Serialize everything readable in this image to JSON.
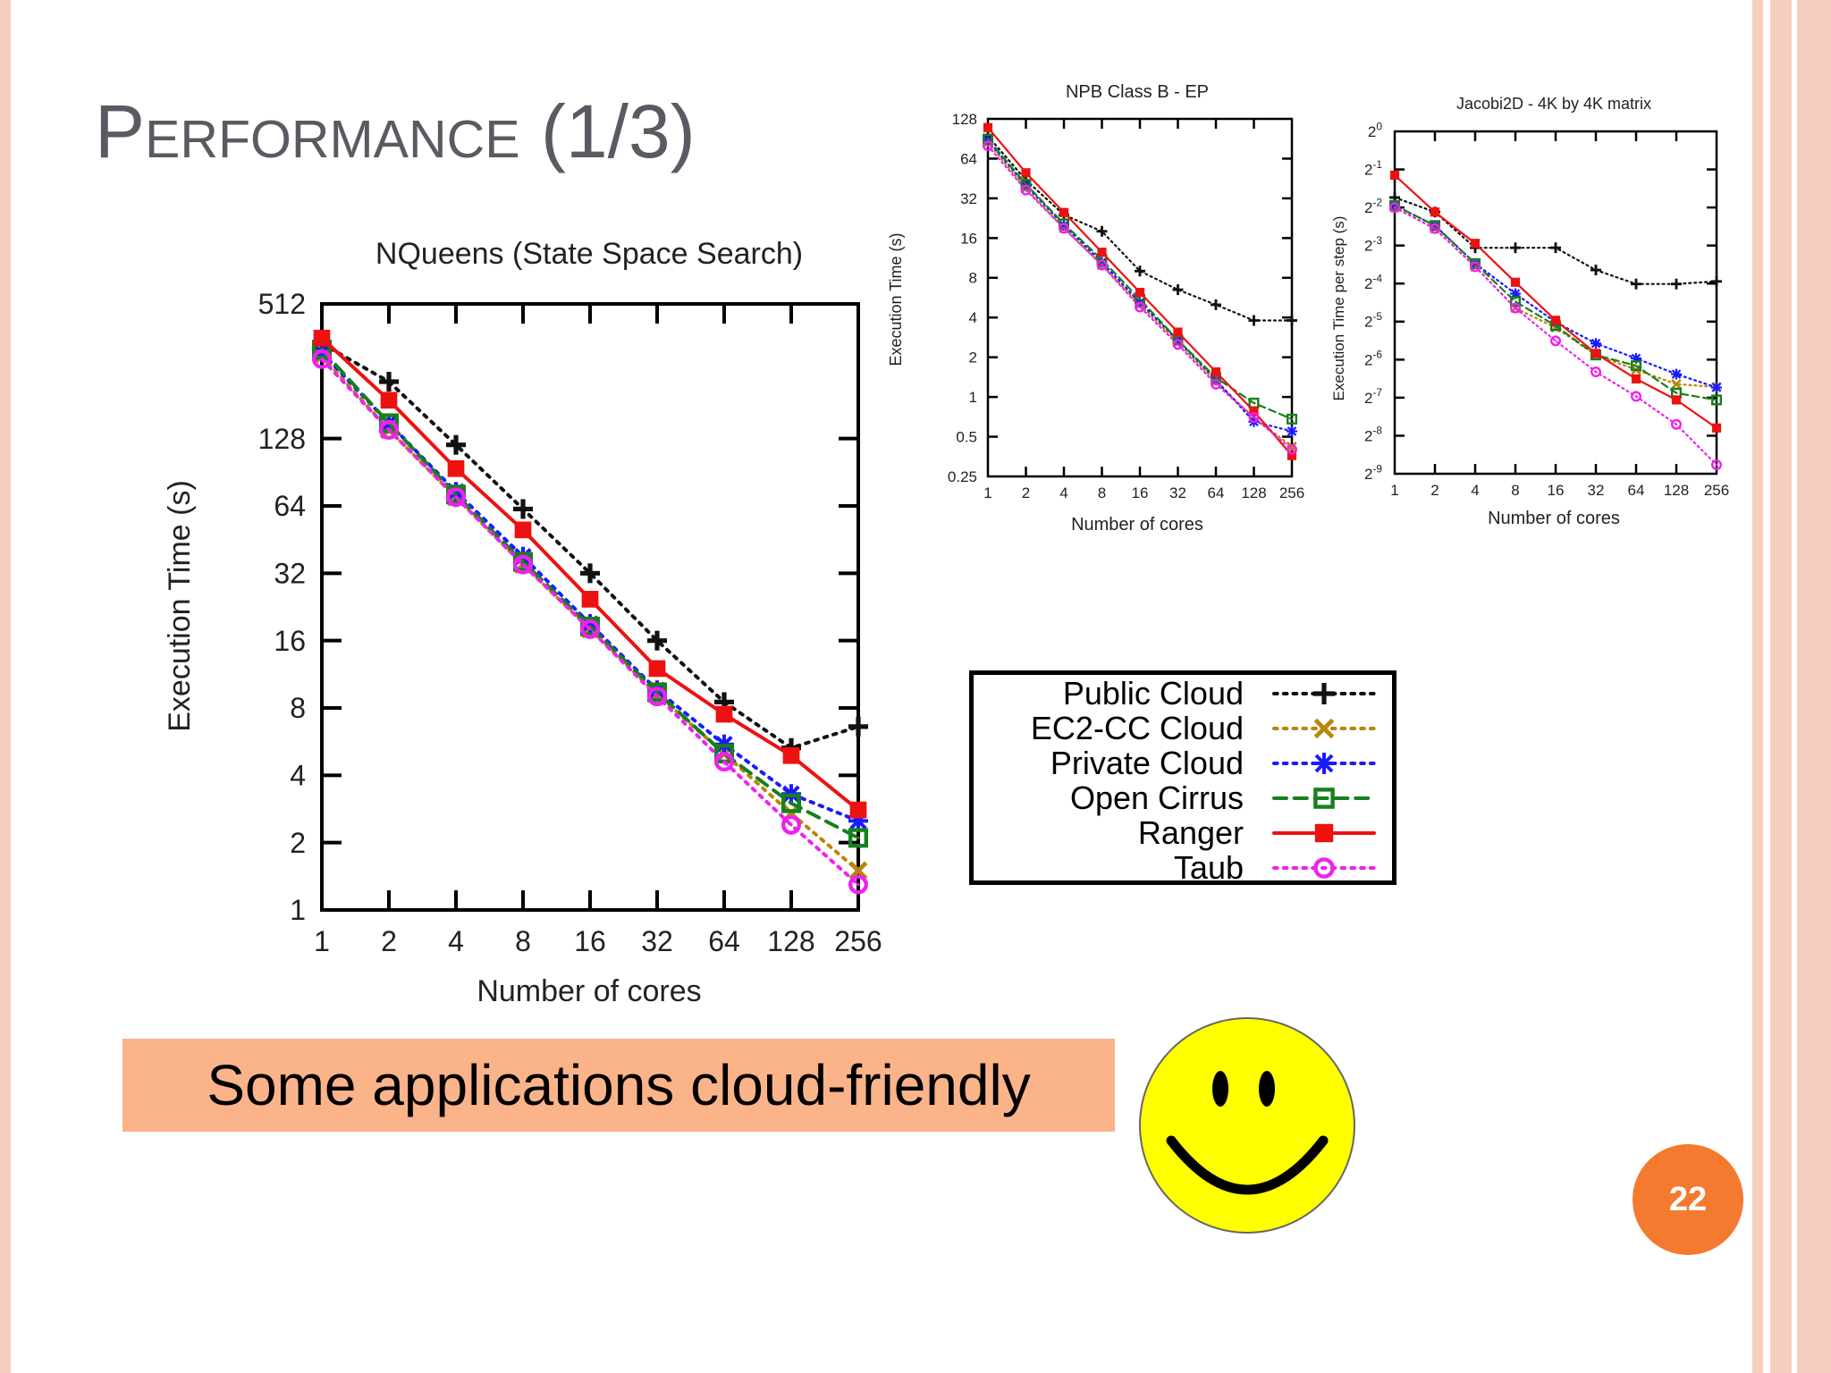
{
  "slide": {
    "title_main": "Performance",
    "title_suffix": " (1/3)",
    "banner_text": "Some applications cloud-friendly",
    "page_number": "22"
  },
  "theme": {
    "edge_color": "#f7cdbd",
    "title_color": "#5a5a62",
    "banner_color": "#fbb38a",
    "badge_color": "#f47a2f",
    "smiley_color": "#ffff00"
  },
  "legend": {
    "entries": [
      {
        "label": "Public Cloud",
        "series": "Public Cloud"
      },
      {
        "label": "EC2-CC Cloud",
        "series": "EC2-CC Cloud"
      },
      {
        "label": "Private Cloud",
        "series": "Private Cloud"
      },
      {
        "label": "Open Cirrus",
        "series": "Open Cirrus"
      },
      {
        "label": "Ranger",
        "series": "Ranger"
      },
      {
        "label": "Taub",
        "series": "Taub"
      }
    ]
  },
  "series_styles": [
    {
      "name": "Public Cloud",
      "color": "#111111",
      "dash": "dotted",
      "marker": "plus"
    },
    {
      "name": "EC2-CC Cloud",
      "color": "#b8860b",
      "dash": "dotted",
      "marker": "x"
    },
    {
      "name": "Private Cloud",
      "color": "#1a1aff",
      "dash": "dotted",
      "marker": "star"
    },
    {
      "name": "Open Cirrus",
      "color": "#16801c",
      "dash": "dashed",
      "marker": "open-square"
    },
    {
      "name": "Ranger",
      "color": "#ee1111",
      "dash": "solid",
      "marker": "filled-square"
    },
    {
      "name": "Taub",
      "color": "#ee22ee",
      "dash": "dotted",
      "marker": "open-circle"
    }
  ],
  "chart_data": [
    {
      "id": "nqueens",
      "type": "line",
      "title": "NQueens (State Space Search)",
      "xlabel": "Number of cores",
      "ylabel": "Execution Time (s)",
      "x_scale": "log2",
      "y_scale": "log2",
      "categories": [
        "1",
        "2",
        "4",
        "8",
        "16",
        "32",
        "64",
        "128",
        "256"
      ],
      "x": [
        1,
        2,
        4,
        8,
        16,
        32,
        64,
        128,
        256
      ],
      "yticks": [
        "1",
        "2",
        "4",
        "8",
        "16",
        "32",
        "64",
        "128",
        "512"
      ],
      "ylim": [
        1,
        512
      ],
      "series": [
        {
          "name": "Public Cloud",
          "values": [
            340,
            230,
            120,
            62,
            32,
            16,
            8.5,
            5.3,
            6.6
          ]
        },
        {
          "name": "EC2-CC Cloud",
          "values": [
            300,
            140,
            70,
            35,
            18,
            9.2,
            5.0,
            2.7,
            1.5
          ]
        },
        {
          "name": "Private Cloud",
          "values": [
            310,
            150,
            74,
            38,
            19,
            9.6,
            5.5,
            3.3,
            2.5
          ]
        },
        {
          "name": "Open Cirrus",
          "values": [
            320,
            150,
            72,
            36,
            18.5,
            9.4,
            5.0,
            3.0,
            2.1
          ]
        },
        {
          "name": "Ranger",
          "values": [
            360,
            190,
            94,
            50,
            24.5,
            12,
            7.5,
            4.9,
            2.8
          ]
        },
        {
          "name": "Taub",
          "values": [
            290,
            140,
            70,
            35,
            18,
            9.0,
            4.6,
            2.4,
            1.3
          ]
        }
      ]
    },
    {
      "id": "npb",
      "type": "line",
      "title": "NPB Class B - EP",
      "xlabel": "Number of cores",
      "ylabel": "Execution Time (s)",
      "x_scale": "log2",
      "y_scale": "log2",
      "categories": [
        "1",
        "2",
        "4",
        "8",
        "16",
        "32",
        "64",
        "128",
        "256"
      ],
      "x": [
        1,
        2,
        4,
        8,
        16,
        32,
        64,
        128,
        256
      ],
      "yticks": [
        "0.25",
        "0.5",
        "1",
        "2",
        "4",
        "8",
        "16",
        "32",
        "64",
        "128"
      ],
      "ylim": [
        0.25,
        128
      ],
      "series": [
        {
          "name": "Public Cloud",
          "values": [
            95,
            44,
            24,
            18,
            9.0,
            6.5,
            5.0,
            3.8,
            3.8
          ]
        },
        {
          "name": "EC2-CC Cloud",
          "values": [
            85,
            38,
            19,
            10,
            5.0,
            2.6,
            1.3,
            0.7,
            0.42
          ]
        },
        {
          "name": "Private Cloud",
          "values": [
            88,
            40,
            20,
            10.5,
            5.2,
            2.7,
            1.35,
            0.65,
            0.55
          ]
        },
        {
          "name": "Open Cirrus",
          "values": [
            90,
            41,
            20.5,
            11,
            5.5,
            2.7,
            1.4,
            0.9,
            0.68
          ]
        },
        {
          "name": "Ranger",
          "values": [
            110,
            50,
            25,
            12.5,
            6.2,
            3.1,
            1.55,
            0.78,
            0.36
          ]
        },
        {
          "name": "Taub",
          "values": [
            80,
            37,
            19,
            10,
            4.8,
            2.5,
            1.25,
            0.7,
            0.4
          ]
        }
      ]
    },
    {
      "id": "jacobi",
      "type": "line",
      "title": "Jacobi2D - 4K by 4K matrix",
      "xlabel": "Number of cores",
      "ylabel": "Execution Time per step (s)",
      "x_scale": "log2",
      "y_scale": "log2",
      "categories": [
        "1",
        "2",
        "4",
        "8",
        "16",
        "32",
        "64",
        "128",
        "256"
      ],
      "x": [
        1,
        2,
        4,
        8,
        16,
        32,
        64,
        128,
        256
      ],
      "yticks_base": "2",
      "yticks_exp": [
        "-9",
        "-8",
        "-7",
        "-6",
        "-5",
        "-4",
        "-3",
        "-2",
        "-1",
        "0"
      ],
      "ylim_exp": [
        -9,
        0
      ],
      "series": [
        {
          "name": "Public Cloud",
          "values": [
            0.3,
            0.23,
            0.12,
            0.12,
            0.12,
            0.08,
            0.062,
            0.062,
            0.065
          ]
        },
        {
          "name": "EC2-CC Cloud",
          "values": [
            0.25,
            0.17,
            0.085,
            0.04,
            0.028,
            0.017,
            0.013,
            0.01,
            0.0095
          ]
        },
        {
          "name": "Private Cloud",
          "values": [
            0.26,
            0.18,
            0.09,
            0.052,
            0.031,
            0.021,
            0.016,
            0.012,
            0.0094
          ]
        },
        {
          "name": "Open Cirrus",
          "values": [
            0.26,
            0.18,
            0.09,
            0.045,
            0.029,
            0.017,
            0.014,
            0.0085,
            0.0075
          ]
        },
        {
          "name": "Ranger",
          "values": [
            0.45,
            0.23,
            0.13,
            0.064,
            0.032,
            0.0175,
            0.011,
            0.0075,
            0.0045
          ]
        },
        {
          "name": "Taub",
          "values": [
            0.25,
            0.17,
            0.085,
            0.04,
            0.022,
            0.0125,
            0.008,
            0.0048,
            0.0023
          ]
        }
      ]
    }
  ]
}
